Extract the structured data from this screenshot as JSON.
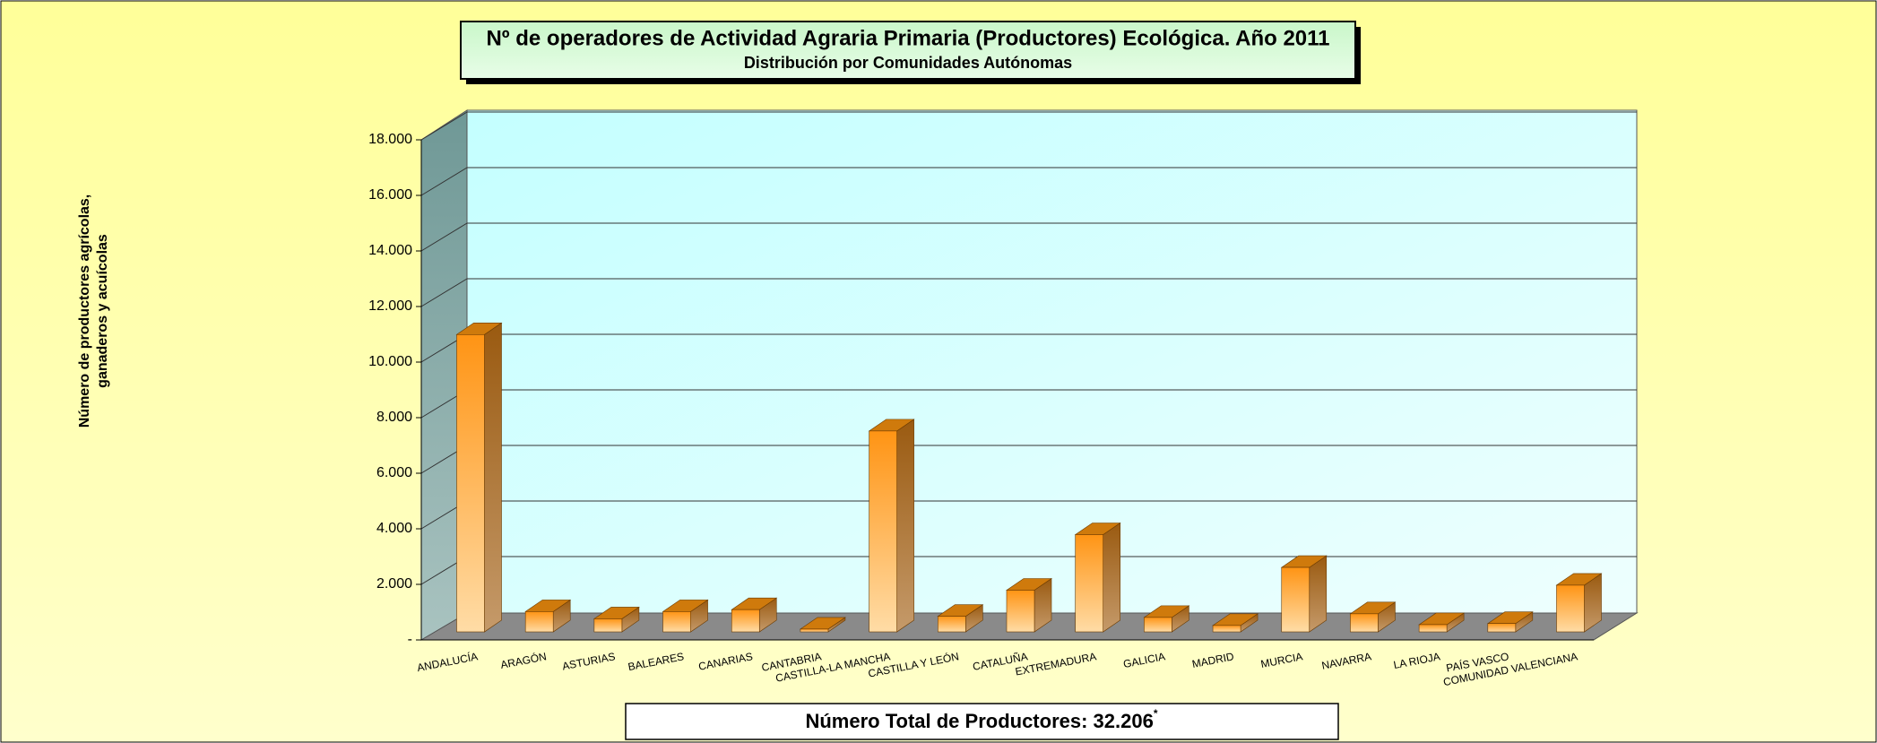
{
  "chart_data": {
    "type": "bar",
    "title": "Nº de operadores de Actividad Agraria Primaria  (Productores) Ecológica. Año 2011",
    "subtitle": "Distribución por Comunidades Autónomas",
    "y_label": [
      "Número de productores agrícolas,",
      "ganaderos y acuícolas"
    ],
    "footer": "Número Total de Productores: 32.206",
    "footer_mark": "*",
    "categories": [
      "ANDALUCÍA",
      "ARAGÓN",
      "ASTURIAS",
      "BALEARES",
      "CANARIAS",
      "CANTABRIA",
      "CASTILLA-LA MANCHA",
      "CASTILLA Y LEÓN",
      "CATALUÑA",
      "EXTREMADURA",
      "GALICIA",
      "MADRID",
      "MURCIA",
      "NAVARRA",
      "LA RIOJA",
      "PAÍS VASCO",
      "COMUNIDAD VALENCIANA"
    ],
    "values": [
      10700,
      730,
      470,
      730,
      800,
      100,
      7230,
      560,
      1500,
      3500,
      520,
      230,
      2320,
      650,
      260,
      300,
      1680
    ],
    "color": "#ff9a1a",
    "ylim": [
      0,
      18000
    ],
    "yticks": [
      {
        "value": 0,
        "label": "-"
      },
      {
        "value": 2000,
        "label": "2.000"
      },
      {
        "value": 4000,
        "label": "4.000"
      },
      {
        "value": 6000,
        "label": "6.000"
      },
      {
        "value": 8000,
        "label": "8.000"
      },
      {
        "value": 10000,
        "label": "10.000"
      },
      {
        "value": 12000,
        "label": "12.000"
      },
      {
        "value": 14000,
        "label": "14.000"
      },
      {
        "value": 16000,
        "label": "16.000"
      },
      {
        "value": 18000,
        "label": "18.000"
      }
    ],
    "grid": true
  }
}
